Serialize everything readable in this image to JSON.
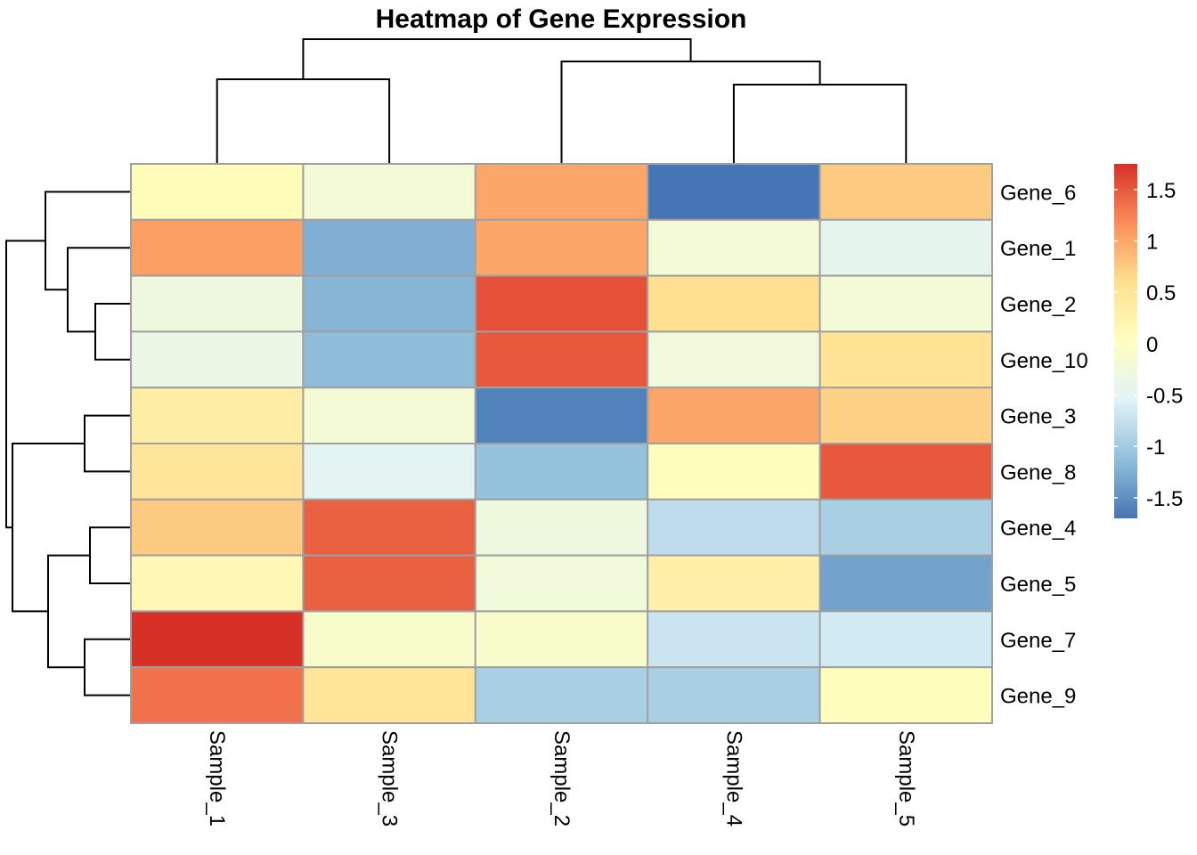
{
  "chart_data": {
    "type": "heatmap",
    "title": "Heatmap of Gene Expression",
    "rows": [
      "Gene_6",
      "Gene_1",
      "Gene_2",
      "Gene_10",
      "Gene_3",
      "Gene_8",
      "Gene_4",
      "Gene_5",
      "Gene_7",
      "Gene_9"
    ],
    "columns": [
      "Sample_1",
      "Sample_3",
      "Sample_2",
      "Sample_4",
      "Sample_5"
    ],
    "values": [
      [
        0.1,
        -0.2,
        1.0,
        -1.7,
        0.75
      ],
      [
        1.05,
        -1.25,
        1.0,
        -0.2,
        -0.45
      ],
      [
        -0.3,
        -1.2,
        1.55,
        0.6,
        -0.2
      ],
      [
        -0.35,
        -1.15,
        1.5,
        -0.25,
        0.55
      ],
      [
        0.35,
        -0.2,
        -1.6,
        1.0,
        0.7
      ],
      [
        0.5,
        -0.5,
        -1.1,
        0.05,
        1.5
      ],
      [
        0.75,
        1.45,
        -0.3,
        -0.8,
        -0.95
      ],
      [
        0.15,
        1.45,
        -0.25,
        0.3,
        -1.35
      ],
      [
        1.75,
        -0.1,
        -0.1,
        -0.7,
        -0.65
      ],
      [
        1.35,
        0.5,
        -0.95,
        -0.95,
        0.05
      ]
    ],
    "legend": {
      "ticks": [
        1.5,
        1,
        0.5,
        0,
        -0.5,
        -1,
        -1.5
      ],
      "tick_labels": [
        "1.5",
        "1",
        "0.5",
        "0",
        "-0.5",
        "-1",
        "-1.5"
      ],
      "range": [
        -1.7,
        1.75
      ],
      "placement": "right"
    },
    "colors": {
      "palette": [
        "#4575b4",
        "#91bfdb",
        "#e0f3f8",
        "#ffffbf",
        "#fee090",
        "#fc8d59",
        "#d73027"
      ],
      "cell_border": "#a0a0a0",
      "dendrogram": "#000000"
    },
    "column_dendrogram": true,
    "row_dendrogram": true
  }
}
